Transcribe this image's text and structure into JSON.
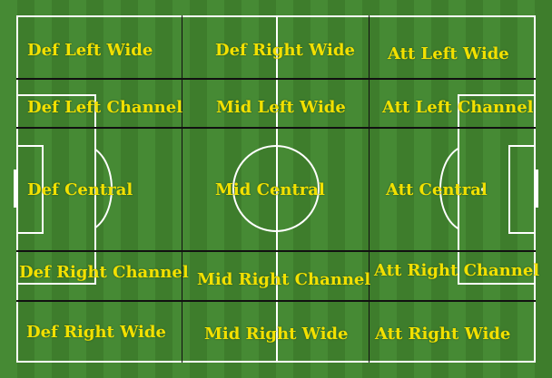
{
  "zones": {
    "def_left_wide": "Def Left Wide",
    "def_right_wide_top": "Def Right Wide",
    "att_left_wide": "Att Left Wide",
    "def_left_channel": "Def Left Channel",
    "mid_left_wide": "Mid Left Wide",
    "att_left_channel": "Att Left Channel",
    "def_central": "Def  Central",
    "mid_central": "Mid Central",
    "att_central": "Att Central",
    "def_right_channel": "Def Right Channel",
    "mid_right_channel": "Mid Right Channel",
    "att_right_channel": "Att Right Channel",
    "def_right_wide": "Def Right Wide",
    "mid_right_wide": "Mid Right Wide",
    "att_right_wide": "Att Right Wide"
  },
  "colors": {
    "label": "#f2e000",
    "pitch_light": "#468a34",
    "pitch_dark": "#3e7d2c",
    "markings": "#ffffff",
    "zone_lines": "#111111"
  }
}
